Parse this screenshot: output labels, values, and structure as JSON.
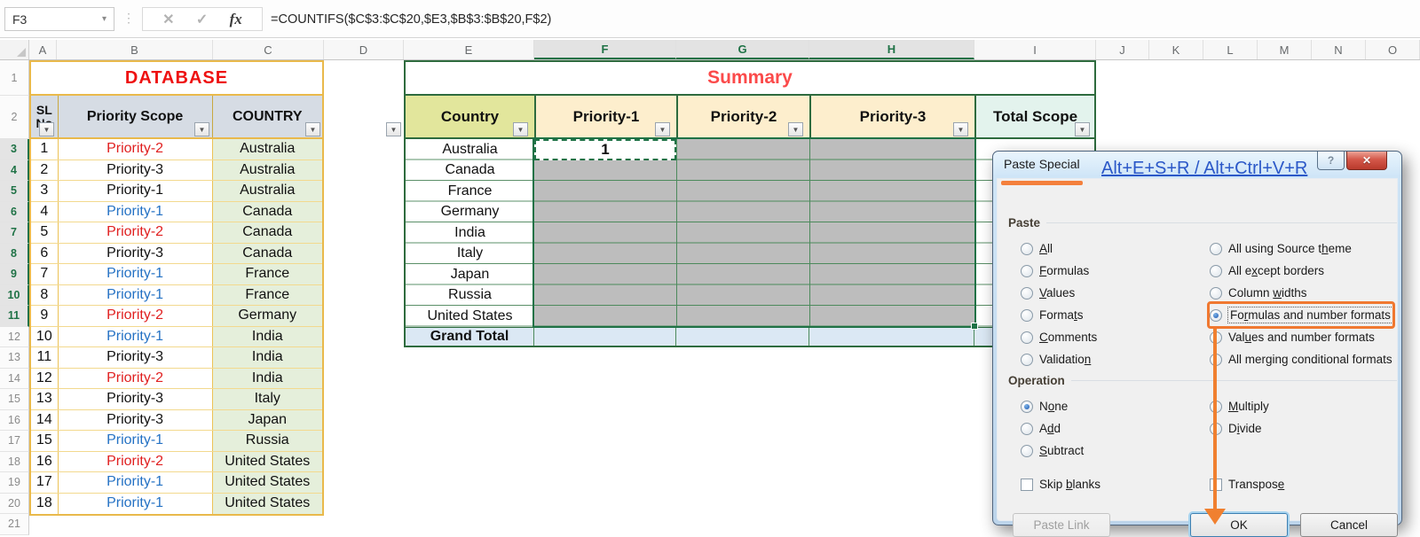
{
  "formula_bar": {
    "name_box": "F3",
    "fx_label": "fx",
    "formula": "=COUNTIFS($C$3:$C$20,$E3,$B$3:$B$20,F$2)"
  },
  "icons": {
    "caret_down": "▾",
    "filter": "▼",
    "cancel": "✕",
    "confirm": "✓",
    "close": "✕",
    "menu_dots": "⋮"
  },
  "grid": {
    "column_letters": [
      "A",
      "B",
      "C",
      "D",
      "E",
      "F",
      "G",
      "H",
      "I",
      "J",
      "K",
      "L",
      "M",
      "N",
      "O"
    ],
    "highlighted_columns": [
      "F",
      "G",
      "H"
    ],
    "rows": [
      "1",
      "2",
      "3",
      "4",
      "5",
      "6",
      "7",
      "8",
      "9",
      "10",
      "11",
      "12",
      "13",
      "14",
      "15",
      "16",
      "17",
      "18",
      "19",
      "20",
      "21"
    ],
    "highlighted_rows": [
      "3",
      "4",
      "5",
      "6",
      "7",
      "8",
      "9",
      "10",
      "11"
    ]
  },
  "database": {
    "title": "DATABASE",
    "title_color": "#ee1111",
    "headers": {
      "sl": "SL No",
      "scope": "Priority Scope",
      "country": "COUNTRY"
    },
    "rows": [
      {
        "sl": "1",
        "scope": "Priority-2",
        "color": "red",
        "country": "Australia"
      },
      {
        "sl": "2",
        "scope": "Priority-3",
        "color": "black",
        "country": "Australia"
      },
      {
        "sl": "3",
        "scope": "Priority-1",
        "color": "black",
        "country": "Australia"
      },
      {
        "sl": "4",
        "scope": "Priority-1",
        "color": "blue",
        "country": "Canada"
      },
      {
        "sl": "5",
        "scope": "Priority-2",
        "color": "red",
        "country": "Canada"
      },
      {
        "sl": "6",
        "scope": "Priority-3",
        "color": "black",
        "country": "Canada"
      },
      {
        "sl": "7",
        "scope": "Priority-1",
        "color": "blue",
        "country": "France"
      },
      {
        "sl": "8",
        "scope": "Priority-1",
        "color": "blue",
        "country": "France"
      },
      {
        "sl": "9",
        "scope": "Priority-2",
        "color": "red",
        "country": "Germany"
      },
      {
        "sl": "10",
        "scope": "Priority-1",
        "color": "blue",
        "country": "India"
      },
      {
        "sl": "11",
        "scope": "Priority-3",
        "color": "black",
        "country": "India"
      },
      {
        "sl": "12",
        "scope": "Priority-2",
        "color": "red",
        "country": "India"
      },
      {
        "sl": "13",
        "scope": "Priority-3",
        "color": "black",
        "country": "Italy"
      },
      {
        "sl": "14",
        "scope": "Priority-3",
        "color": "black",
        "country": "Japan"
      },
      {
        "sl": "15",
        "scope": "Priority-1",
        "color": "blue",
        "country": "Russia"
      },
      {
        "sl": "16",
        "scope": "Priority-2",
        "color": "red",
        "country": "United States"
      },
      {
        "sl": "17",
        "scope": "Priority-1",
        "color": "blue",
        "country": "United States"
      },
      {
        "sl": "18",
        "scope": "Priority-1",
        "color": "blue",
        "country": "United States"
      }
    ]
  },
  "summary": {
    "title": "Summary",
    "title_color": "#fb4a4a",
    "headers": {
      "country": "Country",
      "p1": "Priority-1",
      "p2": "Priority-2",
      "p3": "Priority-3",
      "total": "Total Scope"
    },
    "countries": [
      "Australia",
      "Canada",
      "France",
      "Germany",
      "India",
      "Italy",
      "Japan",
      "Russia",
      "United States"
    ],
    "grand_total_label": "Grand Total",
    "active_cell": {
      "ref": "F3",
      "value": "1"
    },
    "selection_range": "F3:H11",
    "selection_color": "#bdbdbd",
    "border_color": "#2e6b3e"
  },
  "dialog": {
    "title": "Paste Special",
    "shortcut_note": "Alt+E+S+R / Alt+Ctrl+V+R",
    "help_label": "?",
    "annotation_color": "#f07830",
    "paste_group": {
      "label": "Paste",
      "left": [
        {
          "label": "All",
          "accel": 0,
          "checked": false
        },
        {
          "label": "Formulas",
          "accel": 0,
          "checked": false
        },
        {
          "label": "Values",
          "accel": 0,
          "checked": false
        },
        {
          "label": "Formats",
          "accel": 5,
          "checked": false
        },
        {
          "label": "Comments",
          "accel": 0,
          "checked": false
        },
        {
          "label": "Validation",
          "accel": 9,
          "checked": false
        }
      ],
      "right": [
        {
          "label": "All using Source theme",
          "accel": 18,
          "checked": false
        },
        {
          "label": "All except borders",
          "accel": 5,
          "checked": false
        },
        {
          "label": "Column widths",
          "accel": 7,
          "checked": false
        },
        {
          "label": "Formulas and number formats",
          "accel": 2,
          "checked": true,
          "focus": true
        },
        {
          "label": "Values and number formats",
          "accel": 3,
          "checked": false
        },
        {
          "label": "All merging conditional formats",
          "accel": 7,
          "checked": false
        }
      ]
    },
    "operation_group": {
      "label": "Operation",
      "left": [
        {
          "label": "None",
          "accel": 1,
          "checked": true
        },
        {
          "label": "Add",
          "accel": 1,
          "checked": false
        },
        {
          "label": "Subtract",
          "accel": 0,
          "checked": false
        }
      ],
      "right": [
        {
          "label": "Multiply",
          "accel": 0,
          "checked": false
        },
        {
          "label": "Divide",
          "accel": 1,
          "checked": false
        }
      ]
    },
    "checkboxes": [
      {
        "label": "Skip blanks",
        "accel": 5,
        "checked": false
      },
      {
        "label": "Transpose",
        "accel": 8,
        "checked": false
      }
    ],
    "buttons": {
      "paste_link": "Paste Link",
      "ok": "OK",
      "cancel": "Cancel"
    }
  }
}
